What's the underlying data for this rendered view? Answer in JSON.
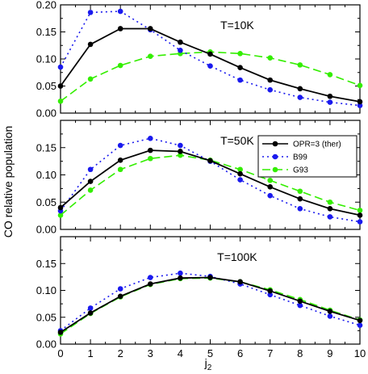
{
  "chart_data": [
    {
      "type": "line",
      "annotation": "T=10K",
      "x": [
        0,
        1,
        2,
        3,
        4,
        5,
        6,
        7,
        8,
        9,
        10
      ],
      "ylim": [
        0,
        0.2
      ],
      "yticks": [
        "0.00",
        "0.05",
        "0.10",
        "0.15",
        "0.20"
      ],
      "ytick_values": [
        0,
        0.05,
        0.1,
        0.15,
        0.2
      ],
      "series": [
        {
          "key": "opr",
          "values": [
            0.05,
            0.127,
            0.156,
            0.156,
            0.131,
            0.109,
            0.084,
            0.061,
            0.045,
            0.031,
            0.021
          ]
        },
        {
          "key": "b99",
          "values": [
            0.085,
            0.186,
            0.188,
            0.154,
            0.116,
            0.087,
            0.061,
            0.043,
            0.029,
            0.02,
            0.014
          ]
        },
        {
          "key": "g93",
          "values": [
            0.022,
            0.063,
            0.088,
            0.105,
            0.11,
            0.113,
            0.11,
            0.102,
            0.089,
            0.071,
            0.051
          ]
        }
      ]
    },
    {
      "type": "line",
      "annotation": "T=50K",
      "x": [
        0,
        1,
        2,
        3,
        4,
        5,
        6,
        7,
        8,
        9,
        10
      ],
      "ylim": [
        0,
        0.2
      ],
      "yticks": [
        "0.00",
        "0.05",
        "0.10",
        "0.15"
      ],
      "ytick_values": [
        0,
        0.05,
        0.1,
        0.15
      ],
      "legend": {
        "placement": "top-right"
      },
      "series": [
        {
          "key": "opr",
          "name": "OPR=3 (ther)",
          "values": [
            0.04,
            0.088,
            0.127,
            0.145,
            0.143,
            0.126,
            0.102,
            0.078,
            0.056,
            0.038,
            0.026
          ]
        },
        {
          "key": "b99",
          "name": "B99",
          "values": [
            0.034,
            0.11,
            0.154,
            0.167,
            0.154,
            0.125,
            0.091,
            0.062,
            0.038,
            0.023,
            0.014
          ]
        },
        {
          "key": "g93",
          "name": "G93",
          "values": [
            0.026,
            0.072,
            0.11,
            0.13,
            0.136,
            0.127,
            0.11,
            0.09,
            0.07,
            0.05,
            0.035
          ]
        }
      ]
    },
    {
      "type": "line",
      "annotation": "T=100K",
      "x": [
        0,
        1,
        2,
        3,
        4,
        5,
        6,
        7,
        8,
        9,
        10
      ],
      "ylim": [
        0,
        0.2
      ],
      "yticks": [
        "0.00",
        "0.05",
        "0.10",
        "0.15"
      ],
      "ytick_values": [
        0,
        0.05,
        0.1,
        0.15
      ],
      "xticks": [
        "0",
        "1",
        "2",
        "3",
        "4",
        "5",
        "6",
        "7",
        "8",
        "9",
        "10"
      ],
      "xlabel": "j2",
      "series": [
        {
          "key": "opr",
          "values": [
            0.022,
            0.058,
            0.089,
            0.112,
            0.123,
            0.124,
            0.116,
            0.099,
            0.08,
            0.061,
            0.044
          ]
        },
        {
          "key": "b99",
          "values": [
            0.025,
            0.067,
            0.103,
            0.124,
            0.132,
            0.126,
            0.112,
            0.092,
            0.072,
            0.052,
            0.035
          ]
        },
        {
          "key": "g93",
          "values": [
            0.019,
            0.057,
            0.088,
            0.111,
            0.122,
            0.123,
            0.116,
            0.101,
            0.083,
            0.063,
            0.045
          ]
        }
      ]
    }
  ],
  "ylabel": "CO relative population",
  "xlabel_main": "j",
  "xlabel_sub": "2",
  "colors": {
    "opr": "#000000",
    "b99": "#1a1aee",
    "g93": "#33ee00"
  }
}
